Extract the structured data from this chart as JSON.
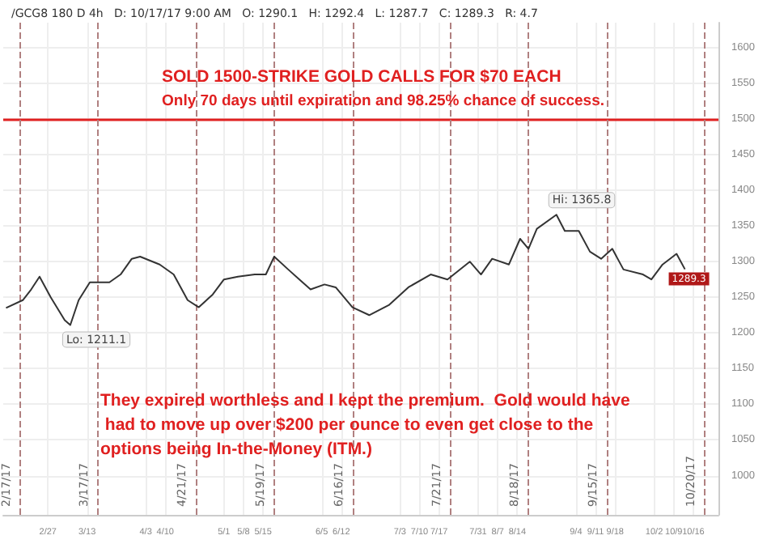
{
  "chart_data": {
    "type": "line",
    "title": "/GCG8 180 D 4h   D: 10/17/17 9:00 AM   O: 1290.1   H: 1292.4   L: 1287.7   C: 1289.3   R: 4.7",
    "x": [
      "--02-12",
      "--02-18",
      "--02-21",
      "--02-24",
      "--02-28",
      "--03-05",
      "--03-07",
      "--03-10",
      "--03-14",
      "--03-21",
      "--03-25",
      "--03-29",
      "--04-01",
      "--04-08",
      "--04-13",
      "--04-18",
      "--04-22",
      "--04-27",
      "--05-01",
      "--05-06",
      "--05-12",
      "--05-16",
      "--05-19",
      "--05-24",
      "--05-28",
      "--06-01",
      "--06-06",
      "--06-10",
      "--06-16",
      "--06-22",
      "--06-29",
      "--07-06",
      "--07-14",
      "--07-20",
      "--07-28",
      "--08-01",
      "--08-05",
      "--08-11",
      "--08-15",
      "--08-18",
      "--08-21",
      "--08-28",
      "--08-31",
      "--09-05",
      "--09-09",
      "--09-13",
      "--09-17",
      "--09-21",
      "--09-28",
      "--10-01",
      "--10-05",
      "--10-10",
      "--10-13"
    ],
    "series": [
      {
        "color": "#333333",
        "values": [
          1235,
          1246,
          1261,
          1279,
          1250,
          1218,
          1211.1,
          1246,
          1271,
          1271,
          1282,
          1304,
          1307,
          1296,
          1282,
          1246,
          1236,
          1254,
          1275,
          1279,
          1282,
          1282,
          1307,
          1289,
          1275,
          1261,
          1268,
          1264,
          1236,
          1225,
          1239,
          1264,
          1282,
          1275,
          1300,
          1282,
          1304,
          1296,
          1332,
          1318,
          1346,
          1365.8,
          1343,
          1343,
          1314,
          1304,
          1318,
          1289,
          1282,
          1275,
          1296,
          1311,
          1289.3
        ]
      }
    ],
    "xlim": [
      "--02-11",
      "--10-25"
    ],
    "xticks": [
      {
        "value": "--02-27",
        "label": "2/27"
      },
      {
        "value": "--03-13",
        "label": "3/13"
      },
      {
        "value": "--04-03",
        "label": "4/3"
      },
      {
        "value": "--04-10",
        "label": "4/10"
      },
      {
        "value": "--05-01",
        "label": "5/1"
      },
      {
        "value": "--05-08",
        "label": "5/8"
      },
      {
        "value": "--05-15",
        "label": "5/15"
      },
      {
        "value": "--06-05",
        "label": "6/5"
      },
      {
        "value": "--06-12",
        "label": "6/12"
      },
      {
        "value": "--07-03",
        "label": "7/3"
      },
      {
        "value": "--07-10",
        "label": "7/10"
      },
      {
        "value": "--07-17",
        "label": "7/17"
      },
      {
        "value": "--07-31",
        "label": "7/31"
      },
      {
        "value": "--08-07",
        "label": "8/7"
      },
      {
        "value": "--08-14",
        "label": "8/14"
      },
      {
        "value": "--09-04",
        "label": "9/4"
      },
      {
        "value": "--09-11",
        "label": "9/11"
      },
      {
        "value": "--09-18",
        "label": "9/18"
      },
      {
        "value": "--10-02",
        "label": "10/2"
      },
      {
        "value": "--10-09",
        "label": "10/9"
      },
      {
        "value": "--10-16",
        "label": "10/16"
      }
    ],
    "ylim": [
      945,
      1635
    ],
    "yticks": [
      1000,
      1050,
      1100,
      1150,
      1200,
      1250,
      1300,
      1350,
      1400,
      1450,
      1500,
      1550,
      1600
    ],
    "grid": true,
    "marker": "none",
    "line_style": "solid",
    "ref_lines": [
      {
        "axis": "y",
        "value": 1500,
        "color": "#e02020",
        "line_style": "solid"
      },
      {
        "axis": "x",
        "value": "--02-17",
        "label": "2/17/17",
        "color": "#b08080",
        "line_style": "dashed"
      },
      {
        "axis": "x",
        "value": "--03-17",
        "label": "3/17/17",
        "color": "#b08080",
        "line_style": "dashed"
      },
      {
        "axis": "x",
        "value": "--04-21",
        "label": "4/21/17",
        "color": "#b08080",
        "line_style": "dashed"
      },
      {
        "axis": "x",
        "value": "--05-19",
        "label": "5/19/17",
        "color": "#b08080",
        "line_style": "dashed"
      },
      {
        "axis": "x",
        "value": "--06-16",
        "label": "6/16/17",
        "color": "#b08080",
        "line_style": "dashed"
      },
      {
        "axis": "x",
        "value": "--07-21",
        "label": "7/21/17",
        "color": "#b08080",
        "line_style": "dashed"
      },
      {
        "axis": "x",
        "value": "--08-18",
        "label": "8/18/17",
        "color": "#b08080",
        "line_style": "dashed"
      },
      {
        "axis": "x",
        "value": "--09-15",
        "label": "9/15/17",
        "color": "#b08080",
        "line_style": "dashed"
      },
      {
        "axis": "x",
        "value": "--10-20",
        "label": "10/20/17",
        "color": "#b08080",
        "line_style": "dashed"
      }
    ],
    "annotations": [
      "SOLD 1500-STRIKE GOLD CALLS FOR $70 EACH",
      "Only 70 days until expiration and 98.25% chance of success.",
      "They expired worthless and I kept the premium.  Gold would have had to move up over $200 per ounce to even get close to the options being In-the-Money (ITM.)",
      {
        "text": "Lo: 1211.1",
        "x": "--03-07",
        "y": 1211.1
      },
      {
        "text": "Hi: 1365.8",
        "x": "--08-28",
        "y": 1365.8
      },
      {
        "text": "1289.3",
        "x": "--10-13",
        "y": 1289.3
      }
    ]
  }
}
